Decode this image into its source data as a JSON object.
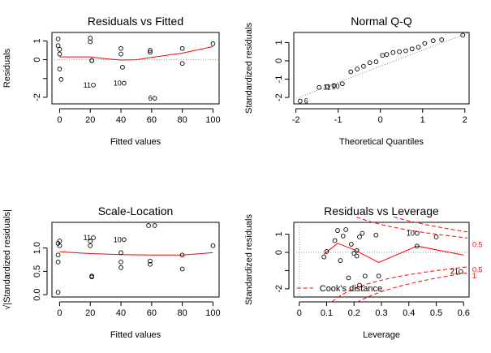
{
  "chart_data": [
    {
      "type": "scatter",
      "title": "Residuals vs Fitted",
      "xlabel": "Fitted values",
      "ylabel": "Residuals",
      "xticks": [
        0,
        20,
        40,
        60,
        80,
        100
      ],
      "yticks": [
        -2,
        -1,
        0,
        1
      ],
      "ytick_labels": [
        "-2",
        "",
        "0",
        "1"
      ],
      "xlim": [
        -5,
        104
      ],
      "ylim": [
        -2.35,
        1.45
      ],
      "reference_line": 0,
      "points": [
        {
          "x": -1,
          "y": 1.1
        },
        {
          "x": -1,
          "y": 0.75
        },
        {
          "x": 0,
          "y": 0.55
        },
        {
          "x": 0,
          "y": 0.3
        },
        {
          "x": 0,
          "y": -0.5
        },
        {
          "x": 1,
          "y": -1.05
        },
        {
          "x": 20,
          "y": 1.15
        },
        {
          "x": 20,
          "y": 0.95
        },
        {
          "x": 21,
          "y": -0.05
        },
        {
          "x": 21,
          "y": -0.05
        },
        {
          "x": 22,
          "y": -1.35,
          "label": "11"
        },
        {
          "x": 40,
          "y": 0.6
        },
        {
          "x": 40,
          "y": 0.3
        },
        {
          "x": 41,
          "y": -0.4
        },
        {
          "x": 42,
          "y": -1.25,
          "label": "10"
        },
        {
          "x": 59,
          "y": 0.5
        },
        {
          "x": 59,
          "y": 0.4
        },
        {
          "x": 62,
          "y": -2.05,
          "label": "6"
        },
        {
          "x": 80,
          "y": 0.6
        },
        {
          "x": 80,
          "y": -0.2
        },
        {
          "x": 100,
          "y": 0.85
        }
      ],
      "smooth": {
        "x": [
          0,
          20,
          30,
          40,
          50,
          60,
          80,
          100
        ],
        "y": [
          0.15,
          0.15,
          0.05,
          -0.02,
          0.0,
          0.12,
          0.35,
          0.7
        ]
      }
    },
    {
      "type": "scatter",
      "title": "Normal Q-Q",
      "xlabel": "Theoretical Quantiles",
      "ylabel": "Standardized residuals",
      "xticks": [
        -2,
        -1,
        0,
        1,
        2
      ],
      "yticks": [
        -2,
        -1,
        0,
        1
      ],
      "xlim": [
        -2.05,
        2.1
      ],
      "ylim": [
        -2.35,
        1.55
      ],
      "points": [
        {
          "x": -1.9,
          "y": -2.2,
          "label": "6"
        },
        {
          "x": -1.45,
          "y": -1.45,
          "label": "11"
        },
        {
          "x": -1.25,
          "y": -1.4,
          "label": "10"
        },
        {
          "x": -1.1,
          "y": -1.35
        },
        {
          "x": -0.9,
          "y": -1.25
        },
        {
          "x": -0.7,
          "y": -0.6
        },
        {
          "x": -0.55,
          "y": -0.45
        },
        {
          "x": -0.4,
          "y": -0.3
        },
        {
          "x": -0.25,
          "y": -0.1
        },
        {
          "x": -0.1,
          "y": -0.05
        },
        {
          "x": 0.05,
          "y": 0.3
        },
        {
          "x": 0.15,
          "y": 0.35
        },
        {
          "x": 0.3,
          "y": 0.45
        },
        {
          "x": 0.45,
          "y": 0.5
        },
        {
          "x": 0.6,
          "y": 0.55
        },
        {
          "x": 0.75,
          "y": 0.65
        },
        {
          "x": 0.9,
          "y": 0.75
        },
        {
          "x": 1.05,
          "y": 0.95
        },
        {
          "x": 1.25,
          "y": 1.1
        },
        {
          "x": 1.45,
          "y": 1.15
        },
        {
          "x": 1.95,
          "y": 1.4
        }
      ],
      "reference_line": {
        "from": [
          -2.05,
          -2.1
        ],
        "to": [
          2.1,
          1.55
        ]
      }
    },
    {
      "type": "scatter",
      "title": "Scale-Location",
      "xlabel": "Fitted values",
      "ylabel": "√|Standardized residuals|",
      "xticks": [
        0,
        20,
        40,
        60,
        80,
        100
      ],
      "yticks": [
        0.0,
        0.5,
        1.0
      ],
      "ytick_labels": [
        "0.0",
        "0.5",
        "1.0"
      ],
      "xlim": [
        -5,
        104
      ],
      "ylim": [
        -0.05,
        1.55
      ],
      "points": [
        {
          "x": -1,
          "y": 1.1
        },
        {
          "x": -1,
          "y": 0.85
        },
        {
          "x": -1,
          "y": 0.7
        },
        {
          "x": 0,
          "y": 1.05
        },
        {
          "x": 0,
          "y": 1.15
        },
        {
          "x": -1,
          "y": 0.05
        },
        {
          "x": 20,
          "y": 1.15
        },
        {
          "x": 20,
          "y": 1.05
        },
        {
          "x": 21,
          "y": 0.4
        },
        {
          "x": 21,
          "y": 0.38
        },
        {
          "x": 22,
          "y": 1.22,
          "label": "11"
        },
        {
          "x": 40,
          "y": 0.9
        },
        {
          "x": 40,
          "y": 0.7
        },
        {
          "x": 40,
          "y": 0.58
        },
        {
          "x": 42,
          "y": 1.18,
          "label": "10"
        },
        {
          "x": 58,
          "y": 1.48
        },
        {
          "x": 62,
          "y": 1.48
        },
        {
          "x": 59,
          "y": 0.72
        },
        {
          "x": 59,
          "y": 0.65
        },
        {
          "x": 80,
          "y": 0.85
        },
        {
          "x": 80,
          "y": 0.55
        },
        {
          "x": 100,
          "y": 1.05
        }
      ],
      "smooth": {
        "x": [
          0,
          20,
          40,
          60,
          80,
          100
        ],
        "y": [
          0.92,
          0.88,
          0.86,
          0.85,
          0.85,
          0.9
        ]
      }
    },
    {
      "type": "scatter",
      "title": "Residuals vs Leverage",
      "xlabel": "Leverage",
      "ylabel": "Standardized residuals",
      "xticks": [
        0.0,
        0.1,
        0.2,
        0.3,
        0.4,
        0.5,
        0.6
      ],
      "yticks": [
        -2,
        -1,
        0,
        1
      ],
      "ytick_labels": [
        "-2",
        "",
        "0",
        "1"
      ],
      "xlim": [
        -0.02,
        0.62
      ],
      "ylim": [
        -2.45,
        1.65
      ],
      "points": [
        {
          "x": 0.09,
          "y": -0.25
        },
        {
          "x": 0.1,
          "y": 0.05
        },
        {
          "x": 0.13,
          "y": 0.65
        },
        {
          "x": 0.14,
          "y": 1.2
        },
        {
          "x": 0.15,
          "y": -0.45
        },
        {
          "x": 0.16,
          "y": 0.9
        },
        {
          "x": 0.17,
          "y": 1.25
        },
        {
          "x": 0.18,
          "y": -1.4
        },
        {
          "x": 0.19,
          "y": 0.45
        },
        {
          "x": 0.2,
          "y": -0.05
        },
        {
          "x": 0.21,
          "y": 0.1
        },
        {
          "x": 0.21,
          "y": -0.2
        },
        {
          "x": 0.22,
          "y": -1.8
        },
        {
          "x": 0.22,
          "y": 0.85
        },
        {
          "x": 0.23,
          "y": 1.05
        },
        {
          "x": 0.24,
          "y": -1.3
        },
        {
          "x": 0.28,
          "y": 0.95
        },
        {
          "x": 0.29,
          "y": -1.3
        },
        {
          "x": 0.43,
          "y": 1.05,
          "label": "10"
        },
        {
          "x": 0.43,
          "y": 0.35
        },
        {
          "x": 0.5,
          "y": 0.85
        },
        {
          "x": 0.59,
          "y": -1.05,
          "label": "21"
        }
      ],
      "smooth": {
        "x": [
          0.09,
          0.14,
          0.2,
          0.29,
          0.43,
          0.6
        ],
        "y": [
          -0.1,
          0.5,
          0.15,
          -0.55,
          0.35,
          -0.15
        ]
      },
      "cooks_distance": {
        "legend": "Cook's distance",
        "levels": [
          "0.5",
          "1",
          "0.5",
          "1"
        ]
      }
    }
  ]
}
